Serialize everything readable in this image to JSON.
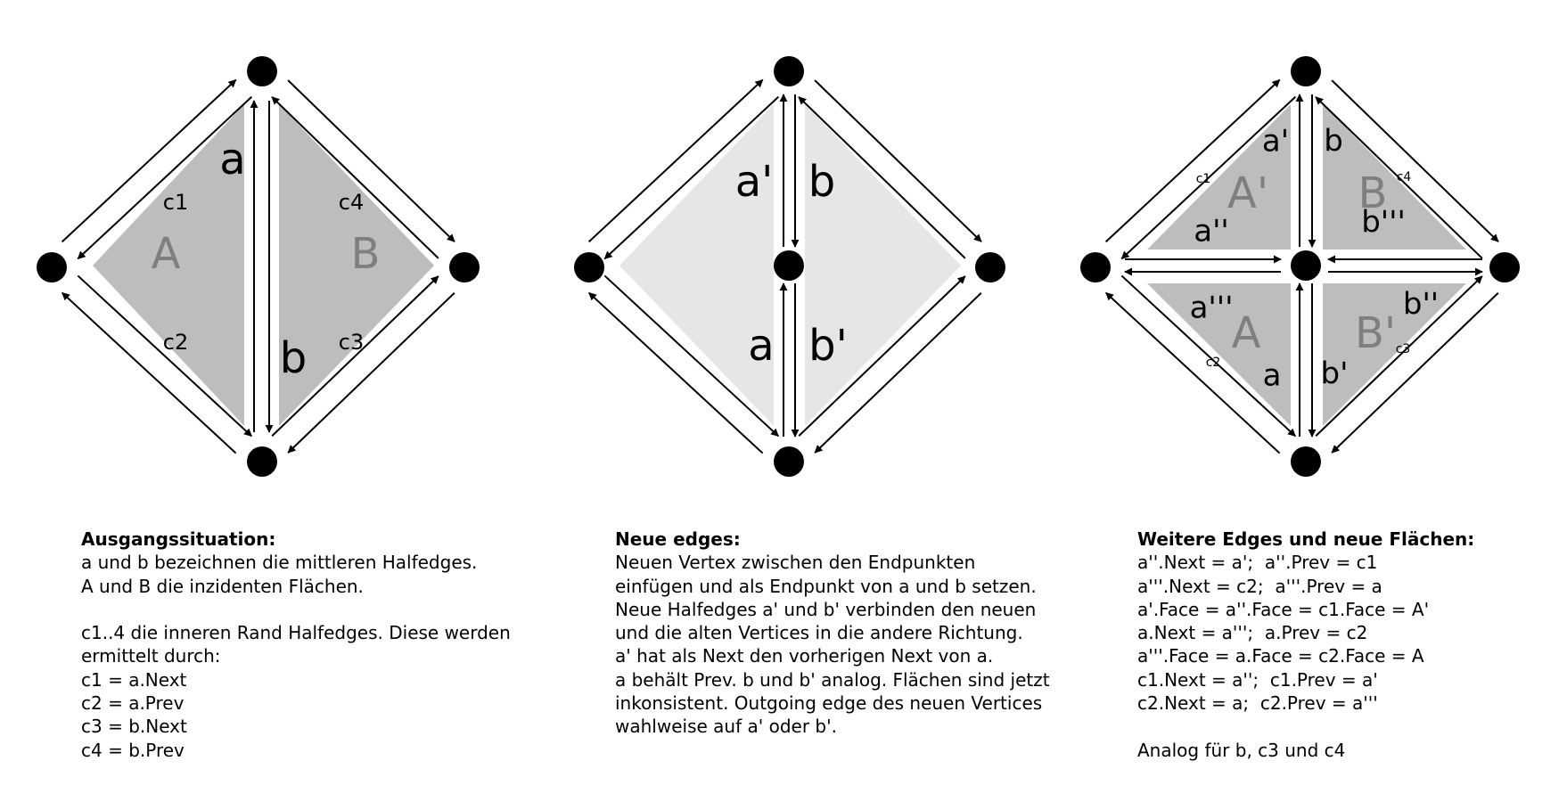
{
  "panels": [
    {
      "faces": [
        {
          "label": "A",
          "color": "#808080"
        },
        {
          "label": "B",
          "color": "#808080"
        }
      ],
      "edge_labels": [
        "a",
        "b"
      ],
      "corner_labels": [
        "c1",
        "c4",
        "c2",
        "c3"
      ],
      "caption": {
        "title": "Ausgangssituation:",
        "lines": [
          "a und b bezeichnen die mittleren Halfedges.",
          "A und B die inzidenten Flächen.",
          "",
          "c1..4 die inneren Rand Halfedges. Diese werden",
          "ermittelt durch:",
          "c1 = a.Next",
          "c2 = a.Prev",
          "c3 = b.Next",
          "c4 = b.Prev"
        ]
      }
    },
    {
      "edge_labels": [
        "a'",
        "b",
        "a",
        "b'"
      ],
      "caption": {
        "title": "Neue edges:",
        "lines": [
          "Neuen Vertex zwischen den Endpunkten",
          "einfügen und als Endpunkt von a und b setzen.",
          "Neue Halfedges a' und b' verbinden den neuen",
          "und die alten Vertices in die andere Richtung.",
          "a' hat als Next den vorherigen Next von a.",
          "a behält Prev. b und b' analog. Flächen sind jetzt",
          "inkonsistent. Outgoing edge des neuen Vertices",
          "wahlweise auf a' oder b'."
        ]
      }
    },
    {
      "faces": [
        {
          "label": "A'"
        },
        {
          "label": "B"
        },
        {
          "label": "A"
        },
        {
          "label": "B'"
        }
      ],
      "edge_labels": [
        "a'",
        "b",
        "a''",
        "b'''",
        "a'''",
        "b''",
        "a",
        "b'"
      ],
      "corner_labels": [
        "c1",
        "c4",
        "c2",
        "c3"
      ],
      "caption": {
        "title": "Weitere Edges und neue Flächen:",
        "lines": [
          "a''.Next = a';  a''.Prev = c1",
          "a'''.Next = c2;  a'''.Prev = a",
          "a'.Face = a''.Face = c1.Face = A'",
          "a.Next = a''';  a.Prev = c2",
          "a'''.Face = a.Face = c2.Face = A",
          "c1.Next = a'';  c1.Prev = a'",
          "c2.Next = a;  c2.Prev = a'''",
          "",
          "Analog für b, c3 und c4"
        ]
      }
    }
  ],
  "colors": {
    "face_dark": "#bdbdbd",
    "face_light": "#e6e6e6",
    "face_label": "#7f7f7f",
    "line": "#000000"
  }
}
